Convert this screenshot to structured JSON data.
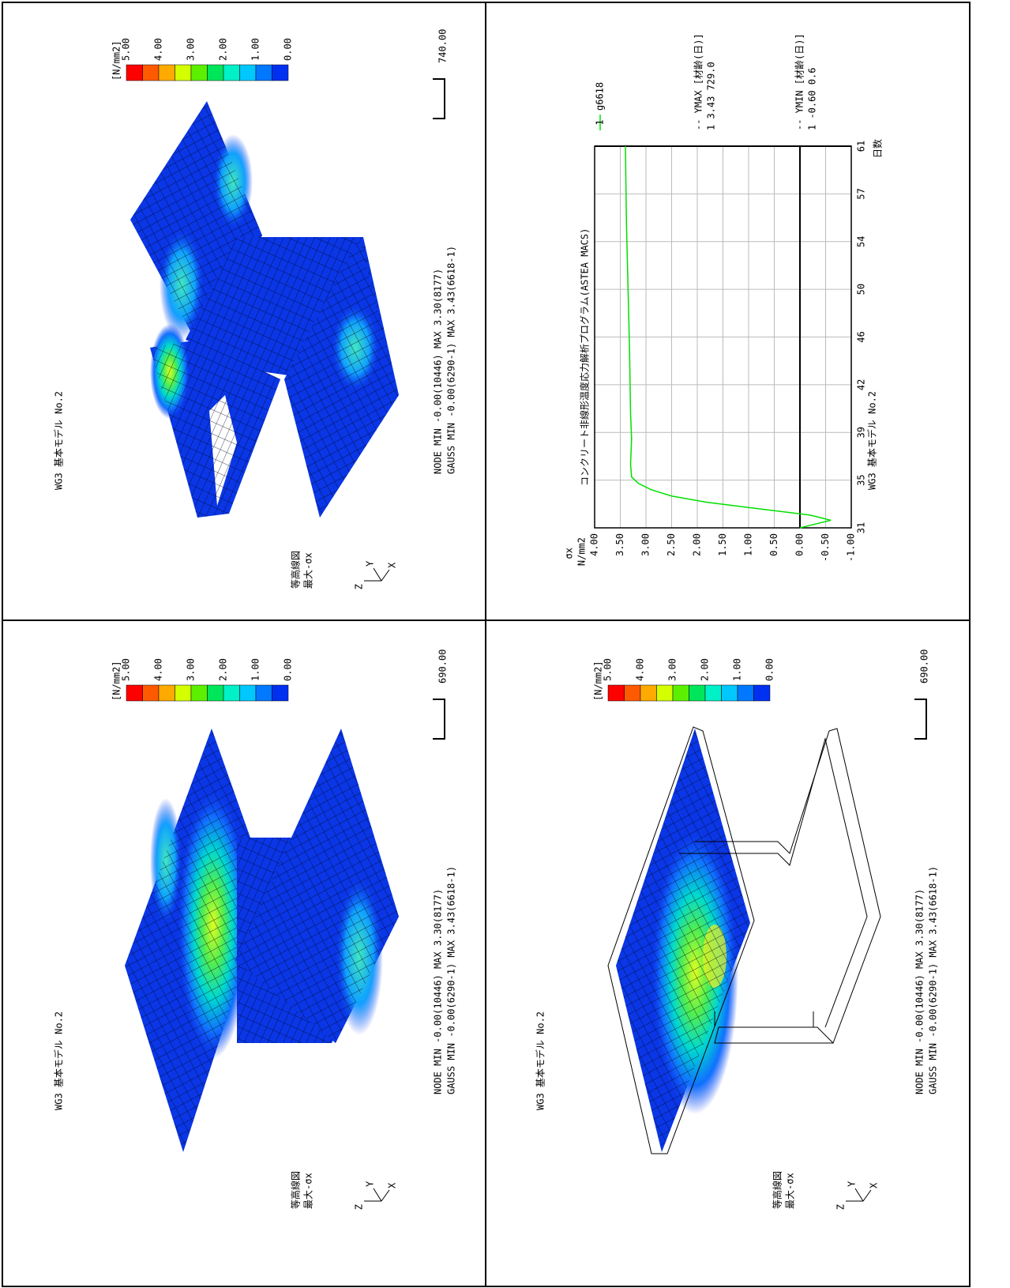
{
  "chart_data": {
    "type": "line",
    "title": "コンクリート非線形温度応力解析プログラム(ASTEA MACS)",
    "subtitle": "WG3 基本モデル No.2",
    "y_label": "σx",
    "y_unit": "N/mm2",
    "x_label": "日数",
    "x": [
      31,
      31.3,
      31.6,
      32,
      32.5,
      33,
      33.5,
      34,
      34.5,
      35,
      36,
      38,
      40,
      45,
      50,
      55,
      61
    ],
    "series": [
      {
        "name": "g6618",
        "marker": "1",
        "color": "#00e000",
        "values": [
          0,
          -0.3,
          -0.6,
          -0.2,
          0.8,
          1.8,
          2.5,
          2.9,
          3.15,
          3.28,
          3.3,
          3.28,
          3.3,
          3.32,
          3.35,
          3.38,
          3.4
        ]
      }
    ],
    "xlim": [
      31,
      61
    ],
    "xticks": [
      31,
      {
        "value": 34.75,
        "label": "35"
      },
      {
        "value": 38.5,
        "label": "39"
      },
      {
        "value": 42.25,
        "label": "42"
      },
      46,
      {
        "value": 49.75,
        "label": "50"
      },
      {
        "value": 53.5,
        "label": "54"
      },
      {
        "value": 57.25,
        "label": "57"
      },
      61
    ],
    "ylim": [
      -1,
      4
    ],
    "yticks": [
      {
        "value": -1,
        "label": "-1.00"
      },
      {
        "value": -0.5,
        "label": "-0.50"
      },
      {
        "value": 0,
        "label": "0.00"
      },
      {
        "value": 0.5,
        "label": "0.50"
      },
      {
        "value": 1,
        "label": "1.00"
      },
      {
        "value": 1.5,
        "label": "1.50"
      },
      {
        "value": 2,
        "label": "2.00"
      },
      {
        "value": 2.5,
        "label": "2.50"
      },
      {
        "value": 3,
        "label": "3.00"
      },
      {
        "value": 3.5,
        "label": "3.50"
      },
      {
        "value": 4,
        "label": "4.00"
      }
    ],
    "grid": true,
    "annotations": [
      {
        "label": "-- YMAX [材齢(日)]",
        "text": "1   3.43   729.0"
      },
      {
        "label": "-- YMIN [材齢(日)]",
        "text": "1  -0.60    0.6"
      }
    ]
  },
  "contour_legend": {
    "unit": "[N/mm2]",
    "labels": [
      "5.00",
      "4.00",
      "3.00",
      "2.00",
      "1.00",
      "0.00"
    ],
    "colors": [
      "#ff0000",
      "#ff5a00",
      "#ffaa00",
      "#d4ff00",
      "#5cf000",
      "#00e65a",
      "#00f0c8",
      "#00c8ff",
      "#0078ff",
      "#0030f0"
    ]
  },
  "panels": [
    {
      "title": "WG3 基本モデル No.2",
      "plot": "等高線図",
      "component": "最大-σx",
      "node": "NODE  MIN -0.00(10446)   MAX 3.30(8177)",
      "gauss": "GAUSS MIN -0.00(6290-1)  MAX 3.43(6618-1)",
      "scale": "740.00",
      "triad": [
        "Z",
        "Y",
        "X"
      ]
    },
    {
      "title": "WG3 基本モデル No.2",
      "plot": "等高線図",
      "component": "最大-σx",
      "node": "NODE  MIN -0.00(10446)   MAX 3.30(8177)",
      "gauss": "GAUSS MIN -0.00(6290-1)  MAX 3.43(6618-1)",
      "scale": "690.00",
      "triad": [
        "Z",
        "Y",
        "X"
      ]
    },
    {
      "title": "WG3 基本モデル No.2",
      "plot": "等高線図",
      "component": "最大-σx",
      "node": "NODE  MIN -0.00(10446)   MAX 3.30(8177)",
      "gauss": "GAUSS MIN -0.00(6290-1)  MAX 3.43(6618-1)",
      "scale": "690.00",
      "triad": [
        "Z",
        "Y",
        "X"
      ]
    }
  ]
}
